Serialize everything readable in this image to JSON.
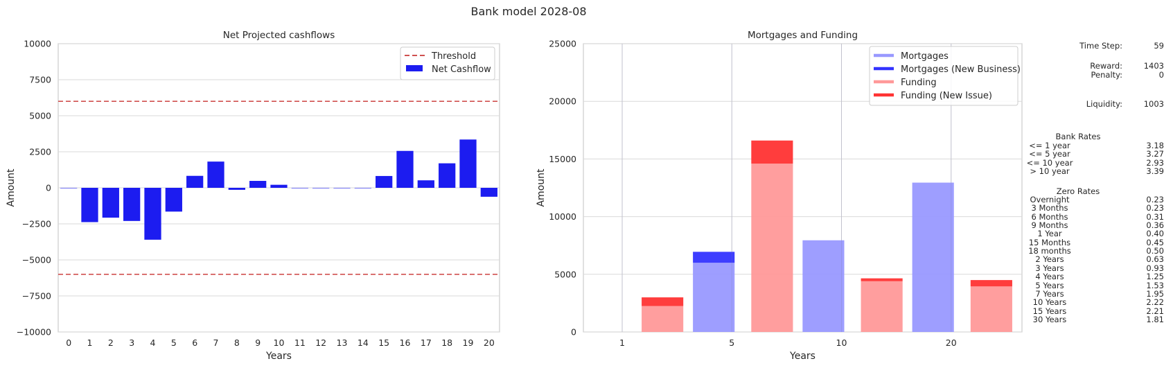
{
  "figure_title": "Bank model 2028-08",
  "chart_data": [
    {
      "type": "bar",
      "title": "Net Projected cashflows",
      "xlabel": "Years",
      "ylabel": "Amount",
      "ylim": [
        -10000,
        10000
      ],
      "yticks": [
        10000,
        7500,
        5000,
        2500,
        0,
        -2500,
        -5000,
        -7500,
        -10000
      ],
      "ytick_labels": [
        "10000",
        "7500",
        "5000",
        "2500",
        "0",
        "−2500",
        "−5000",
        "−7500",
        "−10000"
      ],
      "categories": [
        "0",
        "1",
        "2",
        "3",
        "4",
        "5",
        "6",
        "7",
        "8",
        "9",
        "10",
        "11",
        "12",
        "13",
        "14",
        "15",
        "16",
        "17",
        "18",
        "19",
        "20"
      ],
      "series": [
        {
          "name": "Net Cashflow",
          "color": "#1c1cf0",
          "values": [
            0,
            -2380,
            -2070,
            -2300,
            -3600,
            -1650,
            830,
            1820,
            -140,
            480,
            210,
            0,
            0,
            0,
            0,
            820,
            2560,
            520,
            1700,
            3350,
            -620
          ]
        }
      ],
      "threshold": {
        "name": "Threshold",
        "values": [
          6000,
          -6000
        ],
        "color": "#d0504f"
      },
      "legend": {
        "position": "top-right",
        "entries": [
          "Threshold",
          "Net Cashflow"
        ]
      },
      "grid": "y"
    },
    {
      "type": "bar",
      "title": "Mortgages and Funding",
      "xlabel": "Years",
      "ylabel": "Amount",
      "ylim": [
        0,
        25000
      ],
      "yticks": [
        25000,
        20000,
        15000,
        10000,
        5000,
        0
      ],
      "categories": [
        "1",
        "5",
        "10",
        "20"
      ],
      "series": [
        {
          "name": "Mortgages",
          "color": "#9999ff",
          "values": [
            0,
            6000,
            7950,
            12950
          ]
        },
        {
          "name": "Mortgages (New Business)",
          "color": "#3333ff",
          "values": [
            0,
            950,
            0,
            0
          ]
        },
        {
          "name": "Funding",
          "color": "#ff9999",
          "values": [
            2250,
            14600,
            4400,
            3950
          ]
        },
        {
          "name": "Funding (New Issue)",
          "color": "#ff3333",
          "values": [
            750,
            2000,
            250,
            550
          ]
        }
      ],
      "legend": {
        "position": "top-right",
        "entries": [
          "Mortgages",
          "Mortgages (New Business)",
          "Funding",
          "Funding (New Issue)"
        ]
      },
      "grid": "both"
    }
  ],
  "panel": {
    "time_step_label": "Time Step:",
    "time_step": "59",
    "reward_label": "Reward:",
    "reward": "1403",
    "penalty_label": "Penalty:",
    "penalty": "0",
    "liquidity_label": "Liquidity:",
    "liquidity": "1003",
    "bank_rates_title": "Bank Rates",
    "bank_rates": [
      {
        "label": "<= 1 year",
        "value": "3.18"
      },
      {
        "label": "<= 5 year",
        "value": "3.27"
      },
      {
        "label": "<= 10 year",
        "value": "2.93"
      },
      {
        "label": "> 10 year",
        "value": "3.39"
      }
    ],
    "zero_rates_title": "Zero Rates",
    "zero_rates": [
      {
        "label": "Overnight",
        "value": "0.23"
      },
      {
        "label": "3 Months",
        "value": "0.23"
      },
      {
        "label": "6 Months",
        "value": "0.31"
      },
      {
        "label": "9 Months",
        "value": "0.36"
      },
      {
        "label": "1 Year",
        "value": "0.40"
      },
      {
        "label": "15 Months",
        "value": "0.45"
      },
      {
        "label": "18 months",
        "value": "0.50"
      },
      {
        "label": "2 Years",
        "value": "0.63"
      },
      {
        "label": "3 Years",
        "value": "0.93"
      },
      {
        "label": "4 Years",
        "value": "1.25"
      },
      {
        "label": "5 Years",
        "value": "1.53"
      },
      {
        "label": "7 Years",
        "value": "1.95"
      },
      {
        "label": "10 Years",
        "value": "2.22"
      },
      {
        "label": "15 Years",
        "value": "2.21"
      },
      {
        "label": "30 Years",
        "value": "1.81"
      }
    ]
  }
}
